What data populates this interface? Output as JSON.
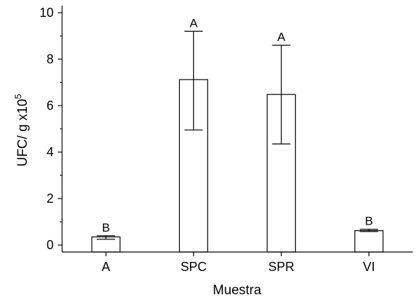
{
  "chart_data": {
    "type": "bar",
    "title": "",
    "xlabel": "Muestra",
    "ylabel_main": "UFC/ g x10",
    "ylabel_superscript": "5",
    "categories": [
      "A",
      "SPC",
      "SPR",
      "VI"
    ],
    "values": [
      0.35,
      7.12,
      6.48,
      0.62
    ],
    "error_low": [
      0.25,
      4.95,
      4.35,
      0.58
    ],
    "error_high": [
      0.4,
      9.2,
      8.6,
      0.68
    ],
    "significance": [
      "B",
      "A",
      "A",
      "B"
    ],
    "ylim": [
      -0.3,
      10
    ],
    "yticks": [
      0,
      2,
      4,
      6,
      8,
      10
    ],
    "ytick_labels": [
      "0",
      "2",
      "4",
      "6",
      "8",
      "10"
    ],
    "grid": false,
    "legend": "none",
    "bar_fill": "#ffffff",
    "bar_stroke": "#000000"
  }
}
